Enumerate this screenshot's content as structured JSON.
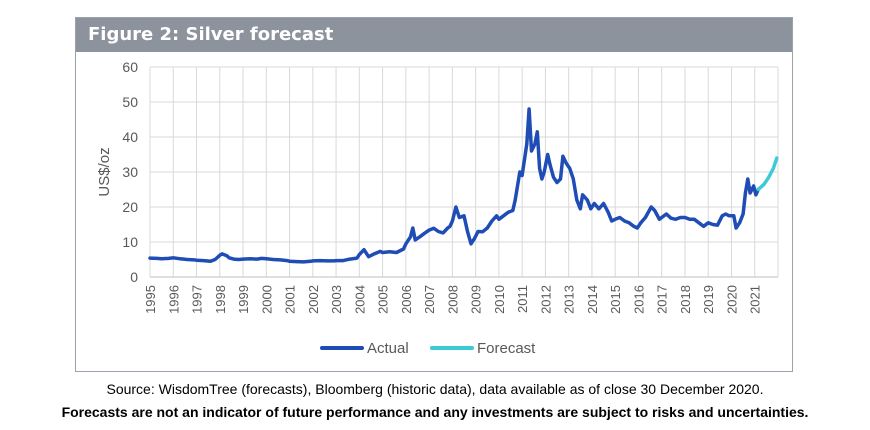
{
  "figure": {
    "title": "Figure 2: Silver forecast"
  },
  "captions": {
    "source": "Source: WisdomTree (forecasts), Bloomberg (historic data), data available as of close 30 December 2020.",
    "disclaimer": "Forecasts are not an indicator of future performance and any investments are subject to risks and uncertainties."
  },
  "colors": {
    "actual": "#1f4db5",
    "forecast": "#3ccbd6",
    "grid": "#d9d9d9",
    "axis_text": "#595959",
    "header_bg": "#8c939c"
  },
  "chart_data": {
    "type": "line",
    "title": "",
    "xlabel": "",
    "ylabel": "US$/oz",
    "xlim": [
      1995,
      2022
    ],
    "ylim": [
      0,
      60
    ],
    "yticks": [
      0,
      10,
      20,
      30,
      40,
      50,
      60
    ],
    "xticks": [
      "1995",
      "1996",
      "1997",
      "1998",
      "1999",
      "2000",
      "2001",
      "2002",
      "2003",
      "2004",
      "2005",
      "2006",
      "2007",
      "2008",
      "2009",
      "2010",
      "2011",
      "2012",
      "2013",
      "2014",
      "2015",
      "2016",
      "2017",
      "2018",
      "2019",
      "2020",
      "2021"
    ],
    "grid": true,
    "legend": "bottom",
    "series": [
      {
        "name": "Actual",
        "color": "#1f4db5",
        "points": [
          [
            1995.0,
            5.4
          ],
          [
            1995.3,
            5.3
          ],
          [
            1995.5,
            5.2
          ],
          [
            1995.8,
            5.3
          ],
          [
            1996.0,
            5.5
          ],
          [
            1996.3,
            5.2
          ],
          [
            1996.6,
            5.0
          ],
          [
            1996.9,
            4.9
          ],
          [
            1997.0,
            4.8
          ],
          [
            1997.3,
            4.7
          ],
          [
            1997.6,
            4.5
          ],
          [
            1997.8,
            5.0
          ],
          [
            1998.0,
            6.2
          ],
          [
            1998.1,
            6.6
          ],
          [
            1998.3,
            6.1
          ],
          [
            1998.4,
            5.5
          ],
          [
            1998.6,
            5.1
          ],
          [
            1998.8,
            5.0
          ],
          [
            1999.0,
            5.1
          ],
          [
            1999.3,
            5.2
          ],
          [
            1999.6,
            5.1
          ],
          [
            1999.8,
            5.3
          ],
          [
            2000.0,
            5.2
          ],
          [
            2000.3,
            5.0
          ],
          [
            2000.6,
            4.9
          ],
          [
            2000.9,
            4.7
          ],
          [
            2001.0,
            4.5
          ],
          [
            2001.3,
            4.4
          ],
          [
            2001.6,
            4.3
          ],
          [
            2001.9,
            4.5
          ],
          [
            2002.0,
            4.6
          ],
          [
            2002.3,
            4.7
          ],
          [
            2002.6,
            4.6
          ],
          [
            2002.9,
            4.6
          ],
          [
            2003.0,
            4.7
          ],
          [
            2003.3,
            4.7
          ],
          [
            2003.6,
            5.1
          ],
          [
            2003.9,
            5.4
          ],
          [
            2004.0,
            6.4
          ],
          [
            2004.2,
            7.8
          ],
          [
            2004.4,
            5.8
          ],
          [
            2004.6,
            6.5
          ],
          [
            2004.9,
            7.3
          ],
          [
            2005.0,
            7.0
          ],
          [
            2005.3,
            7.2
          ],
          [
            2005.6,
            7.0
          ],
          [
            2005.9,
            8.0
          ],
          [
            2006.0,
            9.5
          ],
          [
            2006.2,
            11.5
          ],
          [
            2006.3,
            14.0
          ],
          [
            2006.4,
            10.6
          ],
          [
            2006.6,
            11.5
          ],
          [
            2006.8,
            12.5
          ],
          [
            2007.0,
            13.4
          ],
          [
            2007.2,
            13.9
          ],
          [
            2007.4,
            13.0
          ],
          [
            2007.6,
            12.6
          ],
          [
            2007.8,
            14.0
          ],
          [
            2007.9,
            14.5
          ],
          [
            2008.0,
            16.0
          ],
          [
            2008.15,
            20.0
          ],
          [
            2008.3,
            17.0
          ],
          [
            2008.5,
            17.5
          ],
          [
            2008.65,
            13.0
          ],
          [
            2008.8,
            9.5
          ],
          [
            2008.95,
            11.0
          ],
          [
            2009.1,
            13.0
          ],
          [
            2009.3,
            12.9
          ],
          [
            2009.5,
            14.0
          ],
          [
            2009.7,
            16.0
          ],
          [
            2009.9,
            17.5
          ],
          [
            2010.0,
            16.5
          ],
          [
            2010.2,
            17.5
          ],
          [
            2010.4,
            18.5
          ],
          [
            2010.6,
            19.0
          ],
          [
            2010.7,
            22.0
          ],
          [
            2010.8,
            26.0
          ],
          [
            2010.9,
            30.0
          ],
          [
            2011.0,
            29.0
          ],
          [
            2011.2,
            38.0
          ],
          [
            2011.3,
            48.0
          ],
          [
            2011.4,
            36.0
          ],
          [
            2011.55,
            38.0
          ],
          [
            2011.65,
            41.5
          ],
          [
            2011.75,
            31.0
          ],
          [
            2011.85,
            28.0
          ],
          [
            2011.95,
            30.0
          ],
          [
            2012.1,
            35.0
          ],
          [
            2012.2,
            32.0
          ],
          [
            2012.35,
            28.5
          ],
          [
            2012.5,
            27.0
          ],
          [
            2012.65,
            28.0
          ],
          [
            2012.75,
            34.5
          ],
          [
            2012.9,
            32.5
          ],
          [
            2013.05,
            31.0
          ],
          [
            2013.2,
            28.0
          ],
          [
            2013.35,
            22.0
          ],
          [
            2013.5,
            19.5
          ],
          [
            2013.6,
            23.5
          ],
          [
            2013.8,
            22.0
          ],
          [
            2013.95,
            19.5
          ],
          [
            2014.1,
            21.0
          ],
          [
            2014.3,
            19.5
          ],
          [
            2014.5,
            21.0
          ],
          [
            2014.7,
            18.5
          ],
          [
            2014.85,
            16.0
          ],
          [
            2015.0,
            16.5
          ],
          [
            2015.2,
            17.0
          ],
          [
            2015.4,
            16.0
          ],
          [
            2015.6,
            15.5
          ],
          [
            2015.8,
            14.5
          ],
          [
            2015.95,
            14.0
          ],
          [
            2016.1,
            15.5
          ],
          [
            2016.3,
            17.0
          ],
          [
            2016.55,
            20.0
          ],
          [
            2016.7,
            19.0
          ],
          [
            2016.9,
            16.5
          ],
          [
            2017.0,
            17.0
          ],
          [
            2017.2,
            18.0
          ],
          [
            2017.4,
            16.8
          ],
          [
            2017.6,
            16.5
          ],
          [
            2017.8,
            17.0
          ],
          [
            2018.0,
            17.0
          ],
          [
            2018.2,
            16.5
          ],
          [
            2018.4,
            16.5
          ],
          [
            2018.6,
            15.5
          ],
          [
            2018.8,
            14.5
          ],
          [
            2019.0,
            15.5
          ],
          [
            2019.2,
            15.0
          ],
          [
            2019.4,
            14.8
          ],
          [
            2019.6,
            17.5
          ],
          [
            2019.75,
            18.0
          ],
          [
            2019.9,
            17.5
          ],
          [
            2020.1,
            17.5
          ],
          [
            2020.2,
            14.0
          ],
          [
            2020.35,
            15.5
          ],
          [
            2020.5,
            18.0
          ],
          [
            2020.6,
            24.0
          ],
          [
            2020.7,
            28.0
          ],
          [
            2020.8,
            24.0
          ],
          [
            2020.95,
            26.0
          ],
          [
            2021.05,
            23.5
          ],
          [
            2021.15,
            25.0
          ]
        ]
      },
      {
        "name": "Forecast",
        "color": "#3ccbd6",
        "points": [
          [
            2021.15,
            25.0
          ],
          [
            2021.4,
            26.5
          ],
          [
            2021.6,
            28.5
          ],
          [
            2021.8,
            31.0
          ],
          [
            2021.95,
            34.0
          ]
        ]
      }
    ]
  }
}
